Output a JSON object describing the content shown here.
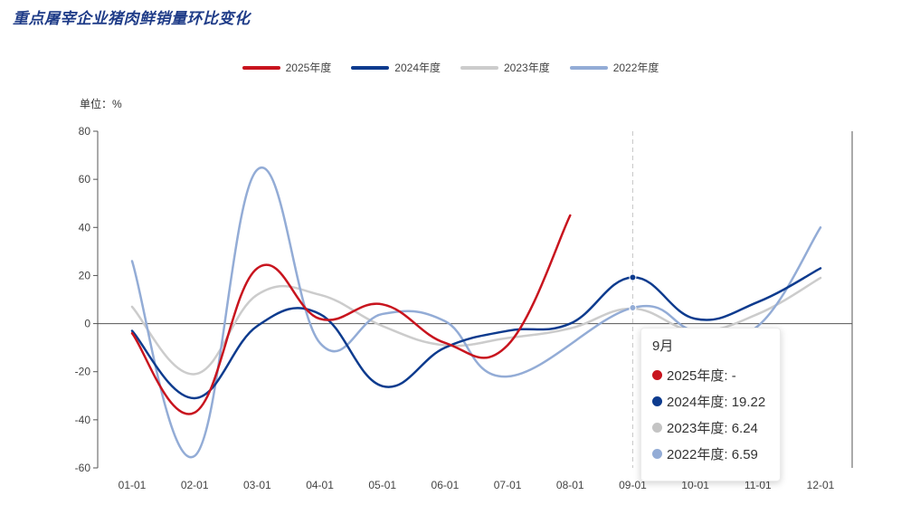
{
  "chart_data": {
    "type": "line",
    "title": "重点屠宰企业猪肉鲜销量环比变化",
    "unit_label": "单位：%",
    "categories": [
      "01-01",
      "02-01",
      "03-01",
      "04-01",
      "05-01",
      "06-01",
      "07-01",
      "08-01",
      "09-01",
      "10-01",
      "11-01",
      "12-01"
    ],
    "ylim": [
      -60,
      80
    ],
    "yticks": [
      -60,
      -40,
      -20,
      0,
      20,
      40,
      60,
      80
    ],
    "grid": false,
    "legend_position": "top-center",
    "series": [
      {
        "name": "2025年度",
        "color": "#c8141e",
        "values": [
          -4,
          -37,
          23,
          2,
          8,
          -8,
          -9,
          45,
          null,
          null,
          null,
          null
        ]
      },
      {
        "name": "2024年度",
        "color": "#0d3b8e",
        "values": [
          -3,
          -31,
          -1,
          4,
          -26,
          -10,
          -3,
          0,
          19.22,
          2,
          9,
          23
        ]
      },
      {
        "name": "2023年度",
        "color": "#cccccc",
        "values": [
          7,
          -21,
          12,
          12,
          -1,
          -9,
          -6,
          -2,
          6.24,
          -3,
          4,
          19
        ]
      },
      {
        "name": "2022年度",
        "color": "#93acd6",
        "values": [
          26,
          -55,
          64,
          -8,
          4,
          1,
          -22,
          null,
          6.59,
          -3,
          -1,
          40
        ]
      }
    ],
    "hover": {
      "index": 8,
      "label": "9月",
      "entries": [
        {
          "series": "2025年度",
          "text": "2025年度:  -"
        },
        {
          "series": "2024年度",
          "text": "2024年度:  19.22"
        },
        {
          "series": "2023年度",
          "text": "2023年度:  6.24"
        },
        {
          "series": "2022年度",
          "text": "2022年度:  6.59"
        }
      ]
    }
  }
}
